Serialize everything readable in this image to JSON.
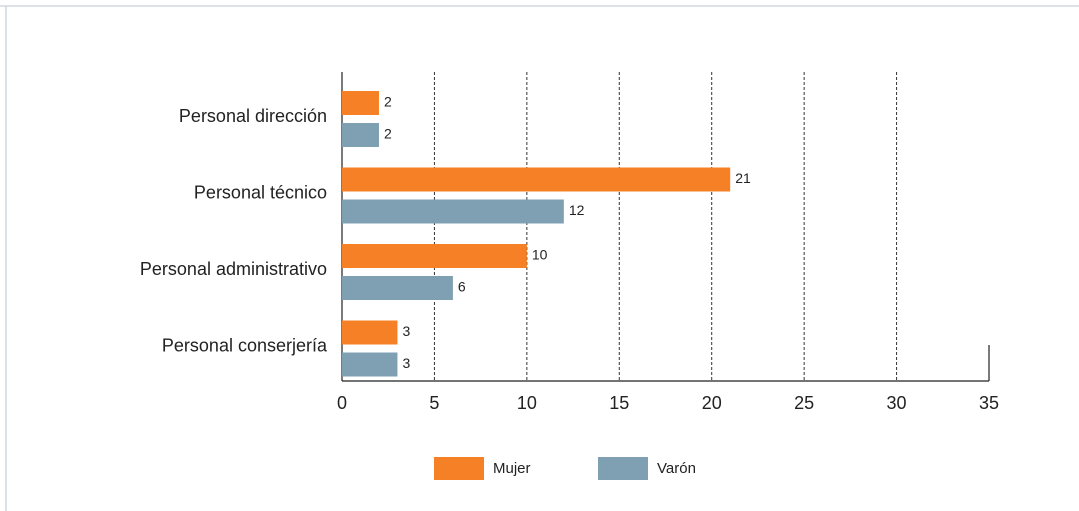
{
  "chart_data": {
    "type": "bar",
    "orientation": "horizontal",
    "categories": [
      "Personal dirección",
      "Personal técnico",
      "Personal administrativo",
      "Personal conserjería"
    ],
    "series": [
      {
        "name": "Mujer",
        "color": "#f58025",
        "values": [
          2,
          21,
          10,
          3
        ]
      },
      {
        "name": "Varón",
        "color": "#7f9fb3",
        "values": [
          2,
          12,
          6,
          3
        ]
      }
    ],
    "xlim": [
      0,
      35
    ],
    "xticks": [
      0,
      5,
      10,
      15,
      20,
      25,
      30,
      35
    ],
    "grid": true,
    "legend": "bottom"
  }
}
